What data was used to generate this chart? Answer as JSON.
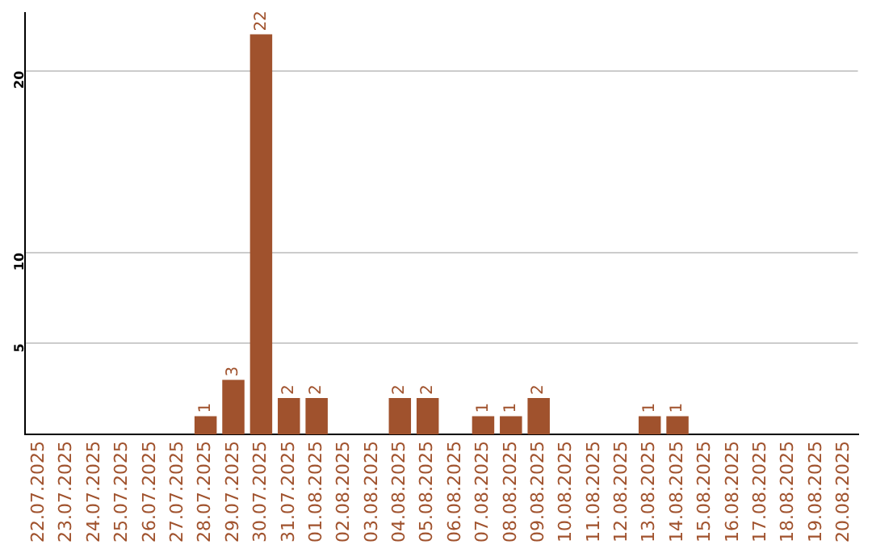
{
  "chart_data": {
    "type": "bar",
    "categories": [
      "22.07.2025",
      "23.07.2025",
      "24.07.2025",
      "25.07.2025",
      "26.07.2025",
      "27.07.2025",
      "28.07.2025",
      "29.07.2025",
      "30.07.2025",
      "31.07.2025",
      "01.08.2025",
      "02.08.2025",
      "03.08.2025",
      "04.08.2025",
      "05.08.2025",
      "06.08.2025",
      "07.08.2025",
      "08.08.2025",
      "09.08.2025",
      "10.08.2025",
      "11.08.2025",
      "12.08.2025",
      "13.08.2025",
      "14.08.2025",
      "15.08.2025",
      "16.08.2025",
      "17.08.2025",
      "18.08.2025",
      "19.08.2025",
      "20.08.2025"
    ],
    "values": [
      0,
      0,
      0,
      0,
      0,
      0,
      1,
      3,
      22,
      2,
      2,
      0,
      0,
      2,
      2,
      0,
      1,
      1,
      2,
      0,
      0,
      0,
      1,
      1,
      0,
      0,
      0,
      0,
      0,
      0
    ],
    "value_labels": [
      null,
      null,
      null,
      null,
      null,
      null,
      "1",
      "3",
      "22",
      "2",
      "2",
      null,
      null,
      "2",
      "2",
      null,
      "1",
      "1",
      "2",
      null,
      null,
      null,
      "1",
      "1",
      null,
      null,
      null,
      null,
      null,
      null
    ],
    "color": "#a0522d",
    "ylim": [
      0,
      23.2
    ],
    "yticks": [
      5,
      10,
      20
    ],
    "grid": "y",
    "legend": false
  }
}
